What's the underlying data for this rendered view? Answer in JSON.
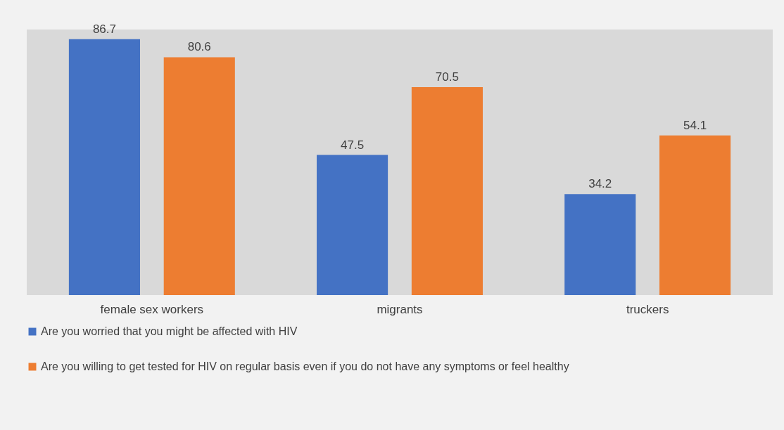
{
  "chart_data": {
    "type": "bar",
    "categories": [
      "female  sex workers",
      "migrants",
      "truckers"
    ],
    "series": [
      {
        "name": "Are you worried that you might be affected with HIV",
        "color": "#4472c4",
        "values": [
          86.7,
          47.5,
          34.2
        ]
      },
      {
        "name": "Are you willing to get tested for HIV on regular basis even if you do not have any symptoms or feel healthy",
        "color": "#ed7d31",
        "values": [
          80.6,
          70.5,
          54.1
        ]
      }
    ],
    "data_labels": true,
    "legend": "bottom",
    "grid": false
  }
}
